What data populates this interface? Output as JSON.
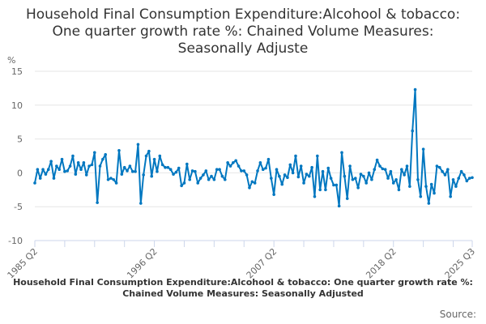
{
  "chart_data": {
    "type": "line",
    "title": "Household Final Consumption Expenditure:Alcohool & tobacco: One quarter growth rate %: Chained Volume Measures: Seasonally Adjuste",
    "ylabel": "%",
    "ylim": [
      -10,
      15
    ],
    "yticks": [
      "15",
      "10",
      "5",
      "0",
      "-5",
      "-10"
    ],
    "x_start": "1985 Q2",
    "x_end": "2025 Q3",
    "xtick_labels": [
      "1985 Q2",
      "1996 Q2",
      "2007 Q2",
      "2018 Q2",
      "2025 Q3"
    ],
    "grid": true,
    "legend_placement": "bottom",
    "series": [
      {
        "name": "Household Final Consumption Expenditure:Alcohool & tobacco: One quarter growth rate %: Chained Volume Measures: Seasonally Adjusted",
        "color": "#0077c0",
        "values": [
          -1.5,
          0.5,
          -0.8,
          0.5,
          -0.2,
          0.5,
          1.7,
          -0.8,
          1.0,
          0.5,
          2.0,
          0.2,
          0.3,
          1.0,
          2.5,
          -0.2,
          1.5,
          0.5,
          1.5,
          -0.3,
          1.0,
          1.2,
          3.0,
          -4.4,
          1.0,
          2.0,
          2.7,
          -1.0,
          -0.8,
          -1.0,
          -1.5,
          3.3,
          -0.2,
          0.8,
          0.3,
          1.0,
          0.2,
          0.2,
          4.2,
          -4.5,
          -0.3,
          2.5,
          3.2,
          -0.5,
          2.0,
          0.2,
          2.5,
          1.2,
          0.8,
          0.8,
          0.5,
          -0.2,
          0.1,
          0.7,
          -1.9,
          -1.5,
          1.3,
          -1.0,
          0.3,
          0.2,
          -1.5,
          -0.8,
          -0.3,
          0.3,
          -1.0,
          -0.5,
          -1.0,
          0.5,
          0.5,
          -0.5,
          -1.0,
          1.5,
          1.0,
          1.5,
          1.8,
          1.0,
          0.3,
          0.3,
          -0.3,
          -2.2,
          -1.3,
          -1.5,
          0.3,
          1.5,
          0.5,
          0.7,
          2.0,
          -0.8,
          -3.2,
          0.5,
          -0.5,
          -1.7,
          -0.3,
          -0.7,
          1.2,
          0.0,
          2.5,
          -0.6,
          1.0,
          -1.5,
          -0.2,
          -0.5,
          0.8,
          -3.5,
          2.5,
          -2.5,
          0.2,
          -2.5,
          0.7,
          -0.8,
          -1.8,
          -1.8,
          -4.9,
          3.0,
          -0.5,
          -3.8,
          1.0,
          -1.0,
          -0.8,
          -2.2,
          -0.2,
          -0.5,
          -1.5,
          0.0,
          -1.0,
          0.5,
          1.9,
          1.0,
          0.6,
          0.5,
          -0.8,
          0.2,
          -1.5,
          -1.0,
          -2.5,
          0.5,
          -0.3,
          1.0,
          -2.0,
          6.2,
          12.3,
          -1.0,
          -3.5,
          3.5,
          -2.0,
          -4.5,
          -1.7,
          -3.0,
          1.0,
          0.8,
          0.2,
          -0.3,
          0.5,
          -3.5,
          -1.0,
          -2.0,
          -0.8,
          0.2,
          -0.3,
          -1.2,
          -0.8,
          -0.7
        ]
      }
    ]
  },
  "legend_text": "Household Final Consumption Expenditure:Alcohool & tobacco: One quarter growth rate %: Chained Volume Measures: Seasonally Adjusted",
  "source_label": "Source:"
}
